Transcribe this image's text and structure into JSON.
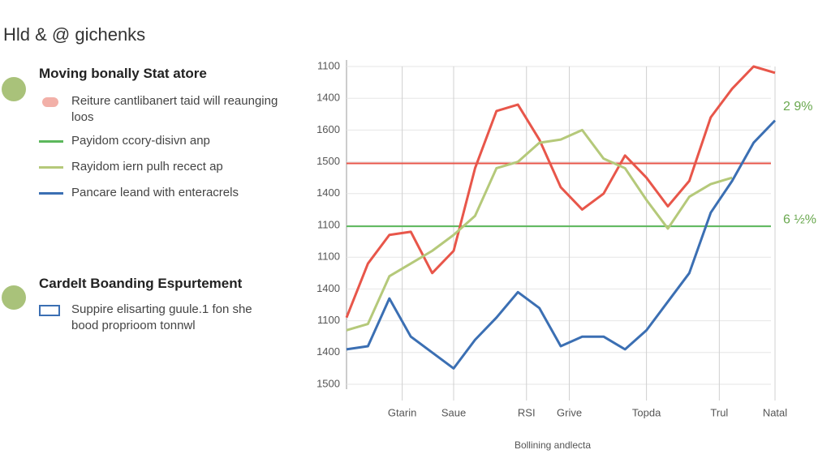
{
  "header": {
    "title": "Hld & @ gichenks"
  },
  "sidebar": {
    "sections": [
      {
        "title": "Moving bonally Stat atore",
        "items": [
          "Reiture cantlibanert taid will reaunging loos",
          "Payidom ccory-disivn anp",
          "Rayidom iern pulh recect ap",
          "Pancare leand with enteracrels"
        ]
      },
      {
        "title": "Cardelt Boanding Espurtement",
        "items": [
          "Suppire elisarting guule.1 fon she bood proprioom tonnwl"
        ]
      }
    ]
  },
  "chart_data": {
    "type": "line",
    "x_label": "Bollining andlecta",
    "x": [
      0,
      5,
      10,
      15,
      20,
      25,
      30,
      35,
      40,
      45,
      50,
      55,
      60,
      65,
      70,
      75,
      80,
      85,
      90,
      95,
      100
    ],
    "series": [
      {
        "color": "#e8564a",
        "values": [
          2.1,
          3.8,
          4.7,
          4.8,
          3.5,
          4.2,
          6.8,
          8.6,
          8.8,
          7.7,
          6.2,
          5.5,
          6.0,
          7.2,
          6.5,
          5.6,
          6.4,
          8.4,
          9.3,
          10.0,
          9.8
        ]
      },
      {
        "color": "#b5c97a",
        "values": [
          1.7,
          1.9,
          3.4,
          3.8,
          4.2,
          4.7,
          5.3,
          6.8,
          7.0,
          7.6,
          7.7,
          8.0,
          7.1,
          6.8,
          5.8,
          4.9,
          5.9,
          6.3,
          6.5,
          null,
          null
        ]
      },
      {
        "color": "#3b6fb3",
        "values": [
          1.1,
          1.2,
          2.7,
          1.5,
          1.0,
          0.5,
          1.4,
          2.1,
          2.9,
          2.4,
          1.2,
          1.5,
          1.5,
          1.1,
          1.7,
          2.6,
          3.5,
          5.4,
          6.4,
          7.6,
          8.3
        ]
      }
    ],
    "reference_lines": [
      {
        "value": 6.95,
        "color": "#e8564a"
      },
      {
        "value": 4.97,
        "color": "#5cb85c"
      }
    ],
    "annotations": [
      {
        "text": "2 9%",
        "color": "#6aa84f"
      },
      {
        "text": "6 ½%",
        "color": "#6aa84f"
      }
    ],
    "xlim": [
      0,
      100
    ],
    "xticks": [
      {
        "value": 13,
        "label": "Gtarin"
      },
      {
        "value": 25,
        "label": "Saue"
      },
      {
        "value": 42,
        "label": "RSI"
      },
      {
        "value": 52,
        "label": "Grive"
      },
      {
        "value": 70,
        "label": "Topda"
      },
      {
        "value": 87,
        "label": "Trul"
      },
      {
        "value": 100,
        "label": "Natal"
      }
    ],
    "ylim": [
      0,
      10
    ],
    "yticks": [
      {
        "value": 0,
        "label": "1500"
      },
      {
        "value": 1,
        "label": "1400"
      },
      {
        "value": 2,
        "label": "1100"
      },
      {
        "value": 3,
        "label": "1400"
      },
      {
        "value": 4,
        "label": "1100"
      },
      {
        "value": 5,
        "label": "1100"
      },
      {
        "value": 6,
        "label": "1400"
      },
      {
        "value": 7,
        "label": "1500"
      },
      {
        "value": 8,
        "label": "1600"
      },
      {
        "value": 9,
        "label": "1400"
      },
      {
        "value": 10,
        "label": "1100"
      }
    ],
    "grid": true
  }
}
